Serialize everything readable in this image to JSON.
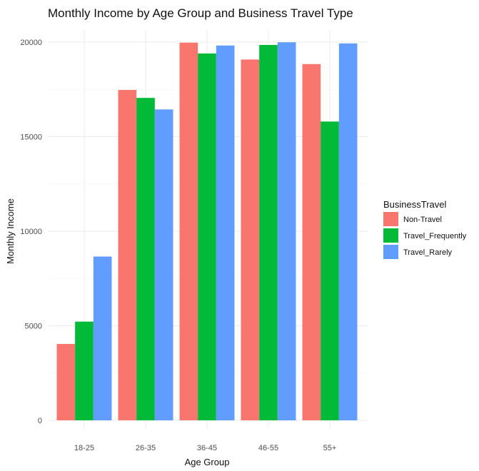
{
  "chart_data": {
    "type": "bar",
    "title": "Monthly Income by Age Group and Business Travel Type",
    "xlabel": "Age Group",
    "ylabel": "Monthly Income",
    "categories": [
      "18-25",
      "26-35",
      "36-45",
      "46-55",
      "55+"
    ],
    "series": [
      {
        "name": "Non-Travel",
        "color": "#F8766D",
        "values": [
          4040,
          17470,
          19970,
          19080,
          18840
        ]
      },
      {
        "name": "Travel_Frequently",
        "color": "#00BA38",
        "values": [
          5220,
          17050,
          19400,
          19850,
          15800
        ]
      },
      {
        "name": "Travel_Rarely",
        "color": "#619CFF",
        "values": [
          8660,
          16440,
          19820,
          19990,
          19930
        ]
      }
    ],
    "ylim": [
      0,
      20000
    ],
    "yticks": [
      "0",
      "5000",
      "10000",
      "15000",
      "20000"
    ],
    "legend": {
      "title": "BusinessTravel",
      "position": "right"
    },
    "grid": true
  }
}
